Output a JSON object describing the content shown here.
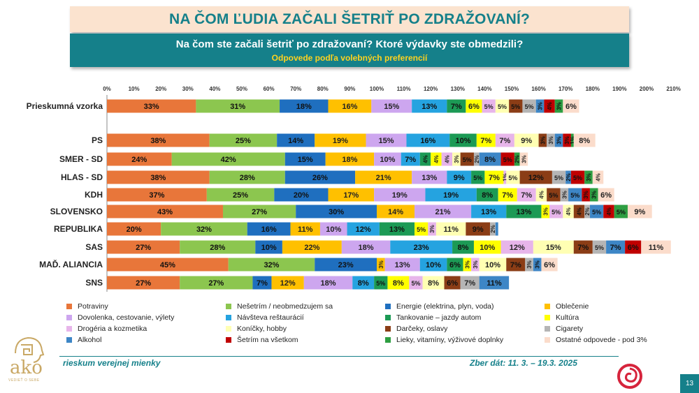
{
  "title": "NA ČOM ĽUDIA ZAČALI ŠETRIŤ PO ZDRAŽOVANÍ?",
  "question": "Na čom ste začali šetriť po zdražovaní? Ktoré výdavky ste obmedzili?",
  "note": "Odpovede podľa volebných preferencií",
  "footer_left": "rieskum verejnej mienky",
  "footer_right": "Zber dát: 11. 3. – 19.3. 2025",
  "page_number": "13",
  "logo_text": "ako",
  "logo_tagline": "VEDIEŤ O SEBE",
  "chart_data": {
    "type": "bar",
    "orientation": "horizontal-stacked",
    "xlim": [
      0,
      210
    ],
    "x_ticks": [
      "0%",
      "10%",
      "20%",
      "30%",
      "40%",
      "50%",
      "60%",
      "70%",
      "80%",
      "90%",
      "100%",
      "110%",
      "120%",
      "130%",
      "140%",
      "150%",
      "160%",
      "170%",
      "180%",
      "190%",
      "200%",
      "210%"
    ],
    "categories": [
      "Prieskumná vzorka",
      "PS",
      "SMER - SD",
      "HLAS - SD",
      "KDH",
      "SLOVENSKO",
      "REPUBLIKA",
      "SAS",
      "MAĎ. ALIANCIA",
      "SNS"
    ],
    "series": [
      {
        "name": "Potraviny",
        "color": "#e8763a",
        "values": [
          33,
          38,
          24,
          38,
          37,
          43,
          20,
          27,
          45,
          27
        ]
      },
      {
        "name": "Nešetrím / neobmedzujem sa",
        "color": "#8cc64f",
        "values": [
          31,
          25,
          42,
          28,
          25,
          27,
          32,
          28,
          32,
          27
        ]
      },
      {
        "name": "Energie (elektrina, plyn, voda)",
        "color": "#1f6fbf",
        "values": [
          18,
          14,
          15,
          26,
          20,
          30,
          16,
          10,
          23,
          7
        ]
      },
      {
        "name": "Oblečenie",
        "color": "#ffc000",
        "values": [
          16,
          19,
          18,
          21,
          17,
          14,
          11,
          22,
          3,
          12
        ]
      },
      {
        "name": "Dovolenka, cestovanie, výlety",
        "color": "#cda6ef",
        "values": [
          15,
          15,
          10,
          13,
          19,
          21,
          10,
          18,
          13,
          18
        ]
      },
      {
        "name": "Návšteva reštaurácií",
        "color": "#25a3e0",
        "values": [
          13,
          16,
          7,
          9,
          19,
          13,
          12,
          23,
          10,
          8
        ]
      },
      {
        "name": "Tankovanie – jazdy autom",
        "color": "#1c9a55",
        "values": [
          7,
          10,
          4,
          5,
          8,
          13,
          13,
          8,
          6,
          5
        ]
      },
      {
        "name": "Kultúra",
        "color": "#ffff00",
        "values": [
          6,
          7,
          4,
          7,
          7,
          3,
          5,
          10,
          3,
          8
        ]
      },
      {
        "name": "Drogéria a kozmetika",
        "color": "#e7b5ea",
        "values": [
          5,
          7,
          4,
          1,
          7,
          5,
          3,
          12,
          3,
          5
        ]
      },
      {
        "name": "Koníčky, hobby",
        "color": "#ffffb3",
        "values": [
          5,
          9,
          3,
          5,
          4,
          4,
          11,
          15,
          10,
          8
        ]
      },
      {
        "name": "Darčeky, oslavy",
        "color": "#8b3d16",
        "values": [
          5,
          3,
          5,
          12,
          5,
          4,
          9,
          7,
          7,
          6
        ]
      },
      {
        "name": "Cigarety",
        "color": "#b5b5b5",
        "values": [
          5,
          3,
          2,
          5,
          3,
          2,
          2,
          5,
          3,
          7
        ]
      },
      {
        "name": "Alkohol",
        "color": "#3d86c6",
        "values": [
          3,
          3,
          8,
          2,
          5,
          5,
          1,
          7,
          3,
          11
        ]
      },
      {
        "name": "Šetrím na všetkom",
        "color": "#c00000",
        "values": [
          4,
          3,
          5,
          5,
          3,
          4,
          0,
          6,
          0,
          0
        ]
      },
      {
        "name": "Lieky, vitamíny, výživové doplnky",
        "color": "#2e9e42",
        "values": [
          3,
          1,
          2,
          3,
          3,
          5,
          0,
          0,
          0,
          0
        ]
      },
      {
        "name": "Ostatné odpovede - pod 3%",
        "color": "#fbdccb",
        "values": [
          6,
          8,
          3,
          4,
          6,
          9,
          0,
          11,
          6,
          0
        ]
      }
    ],
    "labels": [
      [
        "33%",
        "31%",
        "18%",
        "16%",
        "15%",
        "13%",
        "7%",
        "6%",
        "5%",
        "5%",
        "5%",
        "5%",
        "3%",
        "4%",
        "3%",
        "6%"
      ],
      [
        "38%",
        "25%",
        "14%",
        "19%",
        "15%",
        "16%",
        "10%",
        "7%",
        "7%",
        "9%",
        "3%",
        "3%",
        "3%",
        "3%",
        "1%",
        "8%"
      ],
      [
        "24%",
        "42%",
        "15%",
        "18%",
        "10%",
        "7%",
        "4%",
        "4%",
        "4%",
        "3%",
        "5%",
        "2%",
        "8%",
        "5%",
        "2%",
        "3%"
      ],
      [
        "38%",
        "28%",
        "26%",
        "21%",
        "13%",
        "9%",
        "5%",
        "7%",
        "1%",
        "5%",
        "12%",
        "5%",
        "2%",
        "5%",
        "3%",
        "4%"
      ],
      [
        "37%",
        "25%",
        "20%",
        "17%",
        "19%",
        "19%",
        "8%",
        "7%",
        "7%",
        "4%",
        "5%",
        "3%",
        "5%",
        "3%",
        "3%",
        "6%"
      ],
      [
        "43%",
        "27%",
        "30%",
        "14%",
        "21%",
        "13%",
        "13%",
        "3%",
        "5%",
        "4%",
        "4%",
        "2%",
        "5%",
        "4%",
        "5%",
        "9%"
      ],
      [
        "20%",
        "32%",
        "16%",
        "11%",
        "10%",
        "12%",
        "13%",
        "5%",
        "3%",
        "11%",
        "9%",
        "2%",
        "",
        "",
        "",
        ""
      ],
      [
        "27%",
        "28%",
        "10%",
        "22%",
        "18%",
        "23%",
        "8%",
        "10%",
        "12%",
        "15%",
        "7%",
        "5%",
        "7%",
        "6%",
        "",
        "11%"
      ],
      [
        "45%",
        "32%",
        "23%",
        "3%",
        "13%",
        "10%",
        "6%",
        "3%",
        "3%",
        "10%",
        "7%",
        "3%",
        "3%",
        "",
        "",
        "6%"
      ],
      [
        "27%",
        "27%",
        "7%",
        "12%",
        "18%",
        "8%",
        "5%",
        "8%",
        "5%",
        "8%",
        "6%",
        "7%",
        "11%",
        "",
        "",
        ""
      ]
    ]
  },
  "legend": [
    {
      "label": "Potraviny",
      "color": "#e8763a"
    },
    {
      "label": "Nešetrím / neobmedzujem sa",
      "color": "#8cc64f"
    },
    {
      "label": "Energie (elektrina, plyn, voda)",
      "color": "#1f6fbf"
    },
    {
      "label": "Oblečenie",
      "color": "#ffc000"
    },
    {
      "label": "Dovolenka, cestovanie, výlety",
      "color": "#cda6ef"
    },
    {
      "label": "Návšteva reštaurácií",
      "color": "#25a3e0"
    },
    {
      "label": "Tankovanie – jazdy autom",
      "color": "#1c9a55"
    },
    {
      "label": "Kultúra",
      "color": "#ffff00"
    },
    {
      "label": "Drogéria a kozmetika",
      "color": "#e7b5ea"
    },
    {
      "label": "Koníčky, hobby",
      "color": "#ffffb3"
    },
    {
      "label": "Darčeky, oslavy",
      "color": "#8b3d16"
    },
    {
      "label": "Cigarety",
      "color": "#b5b5b5"
    },
    {
      "label": "Alkohol",
      "color": "#3d86c6"
    },
    {
      "label": "Šetrím na všetkom",
      "color": "#c00000"
    },
    {
      "label": "Lieky, vitamíny, výživové doplnky",
      "color": "#2e9e42"
    },
    {
      "label": "Ostatné odpovede - pod 3%",
      "color": "#fbdccb"
    }
  ]
}
